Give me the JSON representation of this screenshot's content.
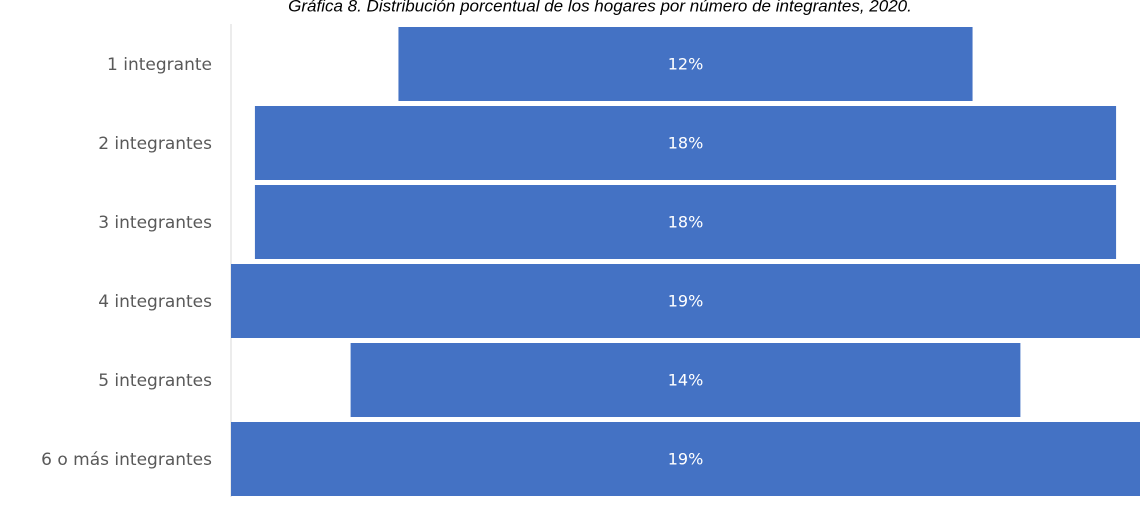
{
  "chart_data": {
    "type": "funnel",
    "title": "Gráfica 8. Distribución porcentual de los hogares por número de integrantes, 2020.",
    "categories": [
      "1 integrante",
      "2 integrantes",
      "3 integrantes",
      "4 integrantes",
      "5 integrantes",
      "6 o más integrantes"
    ],
    "values": [
      12,
      18,
      18,
      19,
      14,
      19
    ],
    "value_labels": [
      "12%",
      "18%",
      "18%",
      "19%",
      "14%",
      "19%"
    ],
    "color": "#4472c4"
  }
}
